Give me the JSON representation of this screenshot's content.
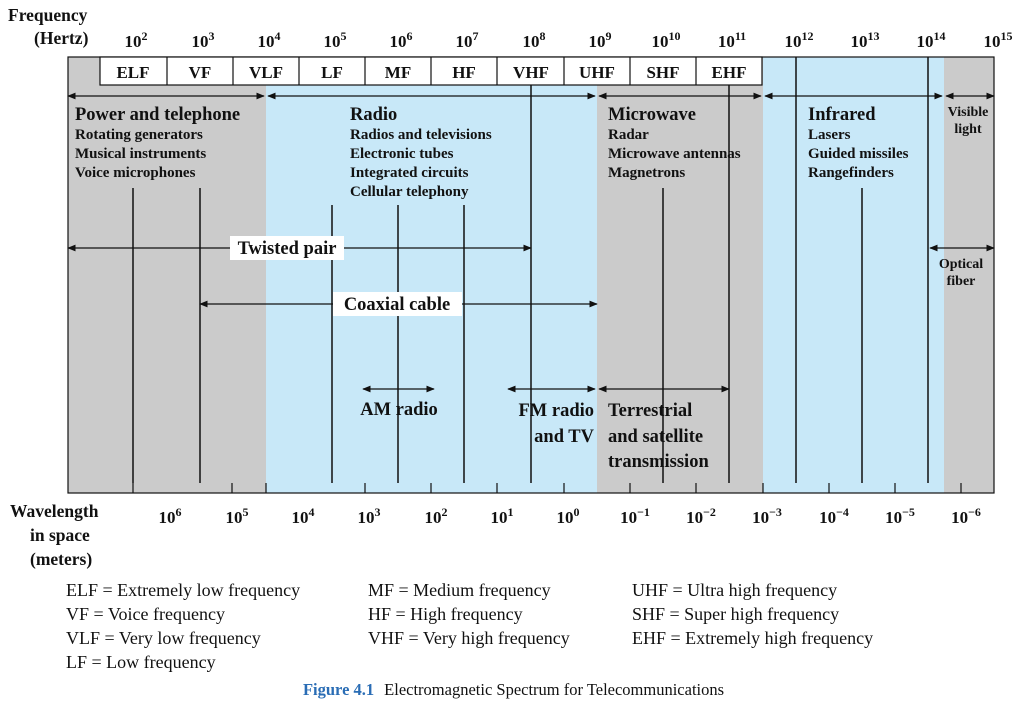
{
  "axis": {
    "frequency_label_1": "Frequency",
    "frequency_label_2": "(Hertz)",
    "frequency_ticks": [
      {
        "base": "10",
        "exp": "2"
      },
      {
        "base": "10",
        "exp": "3"
      },
      {
        "base": "10",
        "exp": "4"
      },
      {
        "base": "10",
        "exp": "5"
      },
      {
        "base": "10",
        "exp": "6"
      },
      {
        "base": "10",
        "exp": "7"
      },
      {
        "base": "10",
        "exp": "8"
      },
      {
        "base": "10",
        "exp": "9"
      },
      {
        "base": "10",
        "exp": "10"
      },
      {
        "base": "10",
        "exp": "11"
      },
      {
        "base": "10",
        "exp": "12"
      },
      {
        "base": "10",
        "exp": "13"
      },
      {
        "base": "10",
        "exp": "14"
      },
      {
        "base": "10",
        "exp": "15"
      }
    ],
    "wavelength_label_1": "Wavelength",
    "wavelength_label_2": "in space",
    "wavelength_label_3": "(meters)",
    "wavelength_ticks": [
      {
        "base": "10",
        "exp": "6"
      },
      {
        "base": "10",
        "exp": "5"
      },
      {
        "base": "10",
        "exp": "4"
      },
      {
        "base": "10",
        "exp": "3"
      },
      {
        "base": "10",
        "exp": "2"
      },
      {
        "base": "10",
        "exp": "1"
      },
      {
        "base": "10",
        "exp": "0"
      },
      {
        "base": "10",
        "exp": "−1"
      },
      {
        "base": "10",
        "exp": "−2"
      },
      {
        "base": "10",
        "exp": "−3"
      },
      {
        "base": "10",
        "exp": "−4"
      },
      {
        "base": "10",
        "exp": "−5"
      },
      {
        "base": "10",
        "exp": "−6"
      }
    ]
  },
  "bands": [
    "ELF",
    "VF",
    "VLF",
    "LF",
    "MF",
    "HF",
    "VHF",
    "UHF",
    "SHF",
    "EHF"
  ],
  "regions": {
    "power": {
      "title": "Power and telephone",
      "items": [
        "Rotating generators",
        "Musical instruments",
        "Voice microphones"
      ]
    },
    "radio": {
      "title": "Radio",
      "items": [
        "Radios and televisions",
        "Electronic tubes",
        "Integrated circuits",
        "Cellular telephony"
      ]
    },
    "microwave": {
      "title": "Microwave",
      "items": [
        "Radar",
        "Microwave antennas",
        "Magnetrons"
      ]
    },
    "infrared": {
      "title": "Infrared",
      "items": [
        "Lasers",
        "Guided missiles",
        "Rangefinders"
      ]
    },
    "visible": {
      "line1": "Visible",
      "line2": "light"
    }
  },
  "media": {
    "twisted_pair": "Twisted pair",
    "coaxial": "Coaxial cable",
    "optical_1": "Optical",
    "optical_2": "fiber",
    "am_radio": "AM radio",
    "fm_1": "FM radio",
    "fm_2": "and TV",
    "terrestrial_1": "Terrestrial",
    "terrestrial_2": "and satellite",
    "terrestrial_3": "transmission"
  },
  "colors": {
    "gray": "#cbcbcb",
    "blue": "#c8e8f8"
  },
  "legend": {
    "col1": [
      "ELF = Extremely low frequency",
      "VF = Voice frequency",
      "VLF = Very low frequency",
      "LF = Low frequency"
    ],
    "col2": [
      "MF = Medium frequency",
      "HF = High frequency",
      "VHF = Very high frequency"
    ],
    "col3": [
      "UHF = Ultra high frequency",
      "SHF = Super high frequency",
      "EHF = Extremely high frequency"
    ]
  },
  "caption": {
    "figure": "Figure 4.1",
    "text": "Electromagnetic Spectrum for Telecommunications"
  }
}
